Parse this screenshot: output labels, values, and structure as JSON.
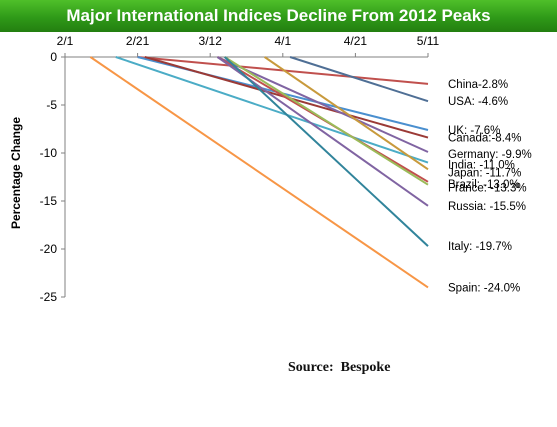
{
  "title": "Major International Indices Decline From 2012 Peaks",
  "source_prefix": "Source:",
  "source_name": "Bespoke",
  "colors": {
    "banner": "#2f9a18",
    "title_text": "#ffffff"
  },
  "chart_data": {
    "type": "line",
    "title": "Major International Indices Decline From 2012 Peaks",
    "xlabel": "",
    "ylabel": "Percentage Change",
    "x_ticks": [
      "2/1",
      "2/21",
      "3/12",
      "4/1",
      "4/21",
      "5/11"
    ],
    "y_ticks": [
      0,
      -5,
      -10,
      -15,
      -20,
      -25
    ],
    "ylim": [
      -25,
      0
    ],
    "grid": false,
    "legend": "direct labels at line ends",
    "series": [
      {
        "name": "China",
        "label": "China-2.8%",
        "color": "#c0504d",
        "points": [
          [
            "2/21",
            0
          ],
          [
            "5/11",
            -2.8
          ]
        ]
      },
      {
        "name": "USA",
        "label": "USA: -4.6%",
        "color": "#4f6f95",
        "points": [
          [
            "4/3",
            0
          ],
          [
            "5/11",
            -4.6
          ]
        ]
      },
      {
        "name": "UK",
        "label": "UK: -7.6%",
        "color": "#4a8fcf",
        "points": [
          [
            "2/21",
            0
          ],
          [
            "5/11",
            -7.6
          ]
        ]
      },
      {
        "name": "Canada",
        "label": "Canada:-8.4%",
        "color": "#9b3a36",
        "points": [
          [
            "2/23",
            0
          ],
          [
            "5/11",
            -8.4
          ]
        ]
      },
      {
        "name": "Germany",
        "label": "Germany: -9.9%",
        "color": "#8064a2",
        "points": [
          [
            "3/14",
            0
          ],
          [
            "5/11",
            -9.9
          ]
        ]
      },
      {
        "name": "India",
        "label": "India: -11.0%",
        "color": "#4bacc6",
        "points": [
          [
            "2/15",
            0
          ],
          [
            "5/11",
            -11.0
          ]
        ]
      },
      {
        "name": "Japan",
        "label": "Japan: -11.7%",
        "color": "#c89a3c",
        "points": [
          [
            "3/27",
            0
          ],
          [
            "5/11",
            -11.7
          ]
        ]
      },
      {
        "name": "Brazil",
        "label": "Brazil: -13.0%",
        "color": "#c0504d",
        "points": [
          [
            "3/14",
            0
          ],
          [
            "5/11",
            -13.0
          ]
        ]
      },
      {
        "name": "France",
        "label": "France: -13.3%",
        "color": "#9bbb59",
        "points": [
          [
            "3/16",
            0
          ],
          [
            "5/11",
            -13.3
          ]
        ]
      },
      {
        "name": "Russia",
        "label": "Russia: -15.5%",
        "color": "#8064a2",
        "points": [
          [
            "3/14",
            0
          ],
          [
            "5/11",
            -15.5
          ]
        ]
      },
      {
        "name": "Italy",
        "label": "Italy: -19.7%",
        "color": "#31849b",
        "points": [
          [
            "3/16",
            0
          ],
          [
            "5/11",
            -19.7
          ]
        ]
      },
      {
        "name": "Spain",
        "label": "Spain: -24.0%",
        "color": "#f79646",
        "points": [
          [
            "2/8",
            0
          ],
          [
            "5/11",
            -24.0
          ]
        ]
      }
    ]
  }
}
